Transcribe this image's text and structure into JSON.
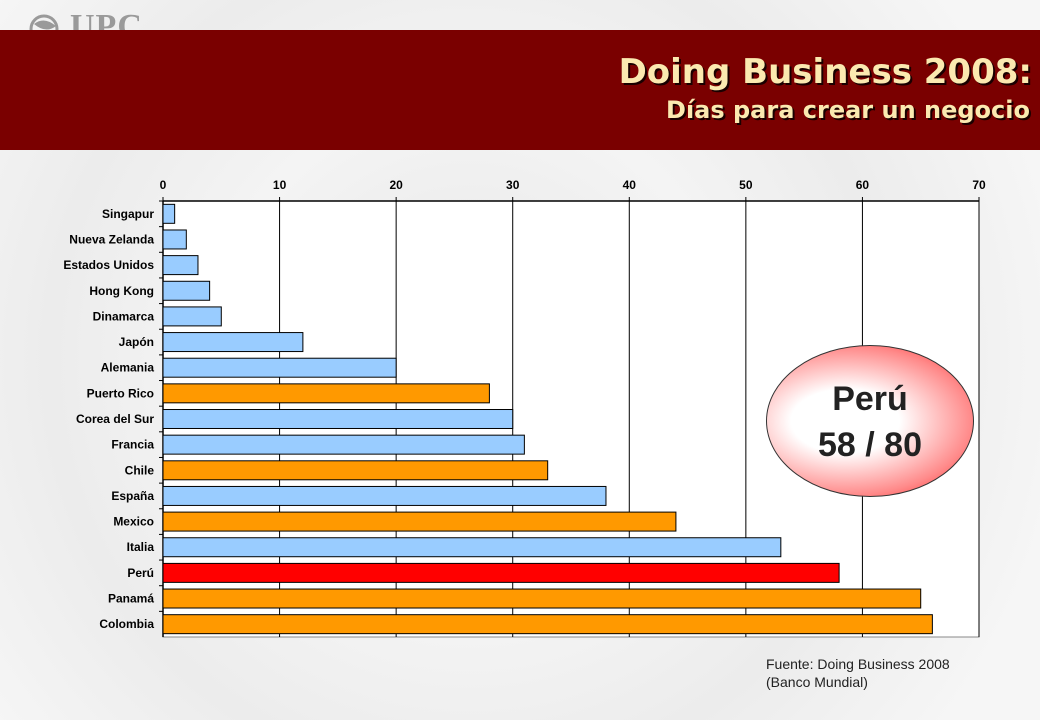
{
  "logo": {
    "text": "UPC"
  },
  "title": "Doing Business 2008:",
  "subtitle": "Días para crear un negocio",
  "badge": {
    "line1": "Perú",
    "line2": "58 / 80"
  },
  "source": {
    "line1": "Fuente: Doing Business 2008",
    "line2": "(Banco Mundial)"
  },
  "colors": {
    "banner": "#7a0000",
    "title": "#fbe9b0",
    "blue": "#99ccff",
    "orange": "#ff9900",
    "red": "#ff0000"
  },
  "chart_data": {
    "type": "bar",
    "orientation": "horizontal",
    "categories": [
      "Singapur",
      "Nueva Zelanda",
      "Estados Unidos",
      "Hong Kong",
      "Dinamarca",
      "Japón",
      "Alemania",
      "Puerto Rico",
      "Corea del Sur",
      "Francia",
      "Chile",
      "España",
      "Mexico",
      "Italia",
      "Perú",
      "Panamá",
      "Colombia"
    ],
    "values": [
      1,
      2,
      3,
      4,
      5,
      12,
      20,
      28,
      30,
      31,
      33,
      38,
      44,
      53,
      58,
      65,
      66
    ],
    "bar_colors": [
      "blue",
      "blue",
      "blue",
      "blue",
      "blue",
      "blue",
      "blue",
      "orange",
      "blue",
      "blue",
      "orange",
      "blue",
      "orange",
      "blue",
      "red",
      "orange",
      "orange"
    ],
    "xlim": [
      0,
      70
    ],
    "xticks": [
      0,
      10,
      20,
      30,
      40,
      50,
      60,
      70
    ],
    "xaxis_position": "top",
    "grid": true
  }
}
